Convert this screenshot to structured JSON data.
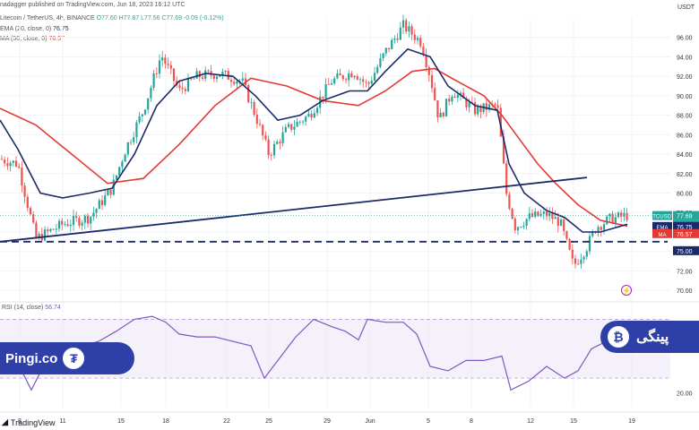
{
  "header": {
    "published": "nadagger published on TradingView.com, Jun 18, 2023 16:12 UTC",
    "symbol_line": "Litecoin / TetherUS, 4h, BINANCE",
    "ohlc": "O77.60 H77.87 L77.56 C77.69 -0.09 (-0.12%)",
    "ema_label": "EMA (20, close, 0)",
    "ema_value": "76.75",
    "ma_label": "MA (50, close, 0)",
    "ma_value": "76.57",
    "currency": "USDT"
  },
  "price_axis": {
    "ticks": [
      "96.00",
      "94.00",
      "92.00",
      "90.00",
      "88.00",
      "86.00",
      "84.00",
      "82.00",
      "80.00",
      "78.00",
      "76.00",
      "74.00",
      "72.00",
      "70.00"
    ],
    "badges": [
      {
        "label": "LTCUSDT",
        "value": "77.69",
        "sub1": "-12.33%",
        "sub2": "03:47:37",
        "color": "#26a69a"
      },
      {
        "label": "EMA",
        "value": "76.75",
        "color": "#1c2a6b"
      },
      {
        "label": "MA",
        "value": "76.57",
        "color": "#e53935"
      },
      {
        "label": "",
        "value": "75.00",
        "color": "#1c2a6b"
      }
    ]
  },
  "rsi": {
    "label": "RSI (14, close)",
    "value": "56.74",
    "ticks": [
      "60.00",
      "20.00"
    ],
    "badge": "RSI"
  },
  "time_axis": {
    "labels": [
      "8",
      "11",
      "15",
      "18",
      "22",
      "25",
      "29",
      "Jun",
      "5",
      "8",
      "12",
      "15",
      "19"
    ]
  },
  "watermark": {
    "left": "Pingi.co",
    "right": "پینگی"
  },
  "footer": {
    "logo": "TradingView"
  },
  "colors": {
    "up": "#26a69a",
    "down": "#ef5350",
    "ema": "#1c2a6b",
    "ma": "#e53935",
    "rsi": "#7e57c2",
    "band": "#3f51b5"
  },
  "chart_data": {
    "type": "candlestick",
    "interval": "4h",
    "x_labels": [
      "8",
      "11",
      "15",
      "18",
      "22",
      "25",
      "29",
      "Jun",
      "5",
      "8",
      "12",
      "15",
      "19"
    ],
    "ylim": [
      69,
      98
    ],
    "price_path": [
      [
        0,
        83.5
      ],
      [
        20,
        83.0
      ],
      [
        40,
        75.3
      ],
      [
        70,
        76.8
      ],
      [
        100,
        77.5
      ],
      [
        125,
        80.5
      ],
      [
        140,
        84.5
      ],
      [
        160,
        88.5
      ],
      [
        180,
        94.2
      ],
      [
        200,
        90.5
      ],
      [
        220,
        92.0
      ],
      [
        245,
        92.3
      ],
      [
        270,
        91.5
      ],
      [
        285,
        88.0
      ],
      [
        300,
        84.0
      ],
      [
        320,
        86.5
      ],
      [
        345,
        88.0
      ],
      [
        370,
        91.5
      ],
      [
        395,
        92.5
      ],
      [
        410,
        91.0
      ],
      [
        430,
        94.5
      ],
      [
        450,
        97.2
      ],
      [
        470,
        95.5
      ],
      [
        480,
        92.0
      ],
      [
        490,
        87.5
      ],
      [
        505,
        90.5
      ],
      [
        530,
        88.5
      ],
      [
        555,
        89.0
      ],
      [
        565,
        80.0
      ],
      [
        575,
        76.5
      ],
      [
        590,
        77.5
      ],
      [
        610,
        77.8
      ],
      [
        625,
        77.0
      ],
      [
        640,
        72.5
      ],
      [
        655,
        74.5
      ],
      [
        665,
        76.5
      ],
      [
        680,
        77.3
      ],
      [
        700,
        77.7
      ]
    ],
    "ema20": [
      [
        0,
        87.5
      ],
      [
        20,
        84.5
      ],
      [
        45,
        80.0
      ],
      [
        70,
        79.5
      ],
      [
        100,
        80.0
      ],
      [
        125,
        80.5
      ],
      [
        150,
        84.0
      ],
      [
        175,
        89.0
      ],
      [
        200,
        91.5
      ],
      [
        230,
        92.3
      ],
      [
        260,
        92.0
      ],
      [
        285,
        90.0
      ],
      [
        310,
        87.5
      ],
      [
        335,
        88.0
      ],
      [
        360,
        89.5
      ],
      [
        390,
        90.5
      ],
      [
        410,
        90.5
      ],
      [
        430,
        92.5
      ],
      [
        455,
        94.8
      ],
      [
        480,
        94.0
      ],
      [
        500,
        91.0
      ],
      [
        530,
        89.0
      ],
      [
        555,
        88.5
      ],
      [
        568,
        83.0
      ],
      [
        585,
        80.0
      ],
      [
        610,
        78.2
      ],
      [
        630,
        77.5
      ],
      [
        650,
        76.0
      ],
      [
        670,
        76.0
      ],
      [
        700,
        76.8
      ]
    ],
    "ma50": [
      [
        0,
        88.7
      ],
      [
        40,
        87.0
      ],
      [
        80,
        84.0
      ],
      [
        120,
        81.0
      ],
      [
        160,
        81.5
      ],
      [
        200,
        85.0
      ],
      [
        240,
        89.0
      ],
      [
        280,
        91.8
      ],
      [
        320,
        91.0
      ],
      [
        360,
        89.5
      ],
      [
        400,
        89.0
      ],
      [
        430,
        90.5
      ],
      [
        460,
        92.5
      ],
      [
        485,
        92.8
      ],
      [
        510,
        91.5
      ],
      [
        540,
        90.0
      ],
      [
        560,
        88.0
      ],
      [
        580,
        85.5
      ],
      [
        600,
        83.0
      ],
      [
        620,
        81.0
      ],
      [
        645,
        78.8
      ],
      [
        670,
        77.2
      ],
      [
        700,
        76.6
      ]
    ],
    "trendline": {
      "from": [
        0,
        75.0
      ],
      "to": [
        655,
        81.6
      ]
    },
    "support": 75.0,
    "rsi_series": [
      [
        0,
        44
      ],
      [
        20,
        40
      ],
      [
        35,
        22
      ],
      [
        50,
        40
      ],
      [
        80,
        50
      ],
      [
        110,
        55
      ],
      [
        130,
        62
      ],
      [
        150,
        70
      ],
      [
        170,
        72
      ],
      [
        185,
        68
      ],
      [
        200,
        60
      ],
      [
        220,
        58
      ],
      [
        240,
        58
      ],
      [
        260,
        55
      ],
      [
        280,
        52
      ],
      [
        295,
        30
      ],
      [
        310,
        42
      ],
      [
        330,
        58
      ],
      [
        350,
        70
      ],
      [
        370,
        65
      ],
      [
        385,
        62
      ],
      [
        400,
        56
      ],
      [
        410,
        70
      ],
      [
        430,
        68
      ],
      [
        450,
        68
      ],
      [
        465,
        60
      ],
      [
        480,
        38
      ],
      [
        500,
        35
      ],
      [
        520,
        42
      ],
      [
        540,
        42
      ],
      [
        560,
        45
      ],
      [
        570,
        22
      ],
      [
        590,
        28
      ],
      [
        610,
        38
      ],
      [
        630,
        30
      ],
      [
        645,
        35
      ],
      [
        660,
        50
      ],
      [
        680,
        56
      ],
      [
        700,
        57
      ]
    ],
    "rsi_range": [
      10,
      80
    ],
    "rsi_bands": [
      30,
      70
    ]
  }
}
